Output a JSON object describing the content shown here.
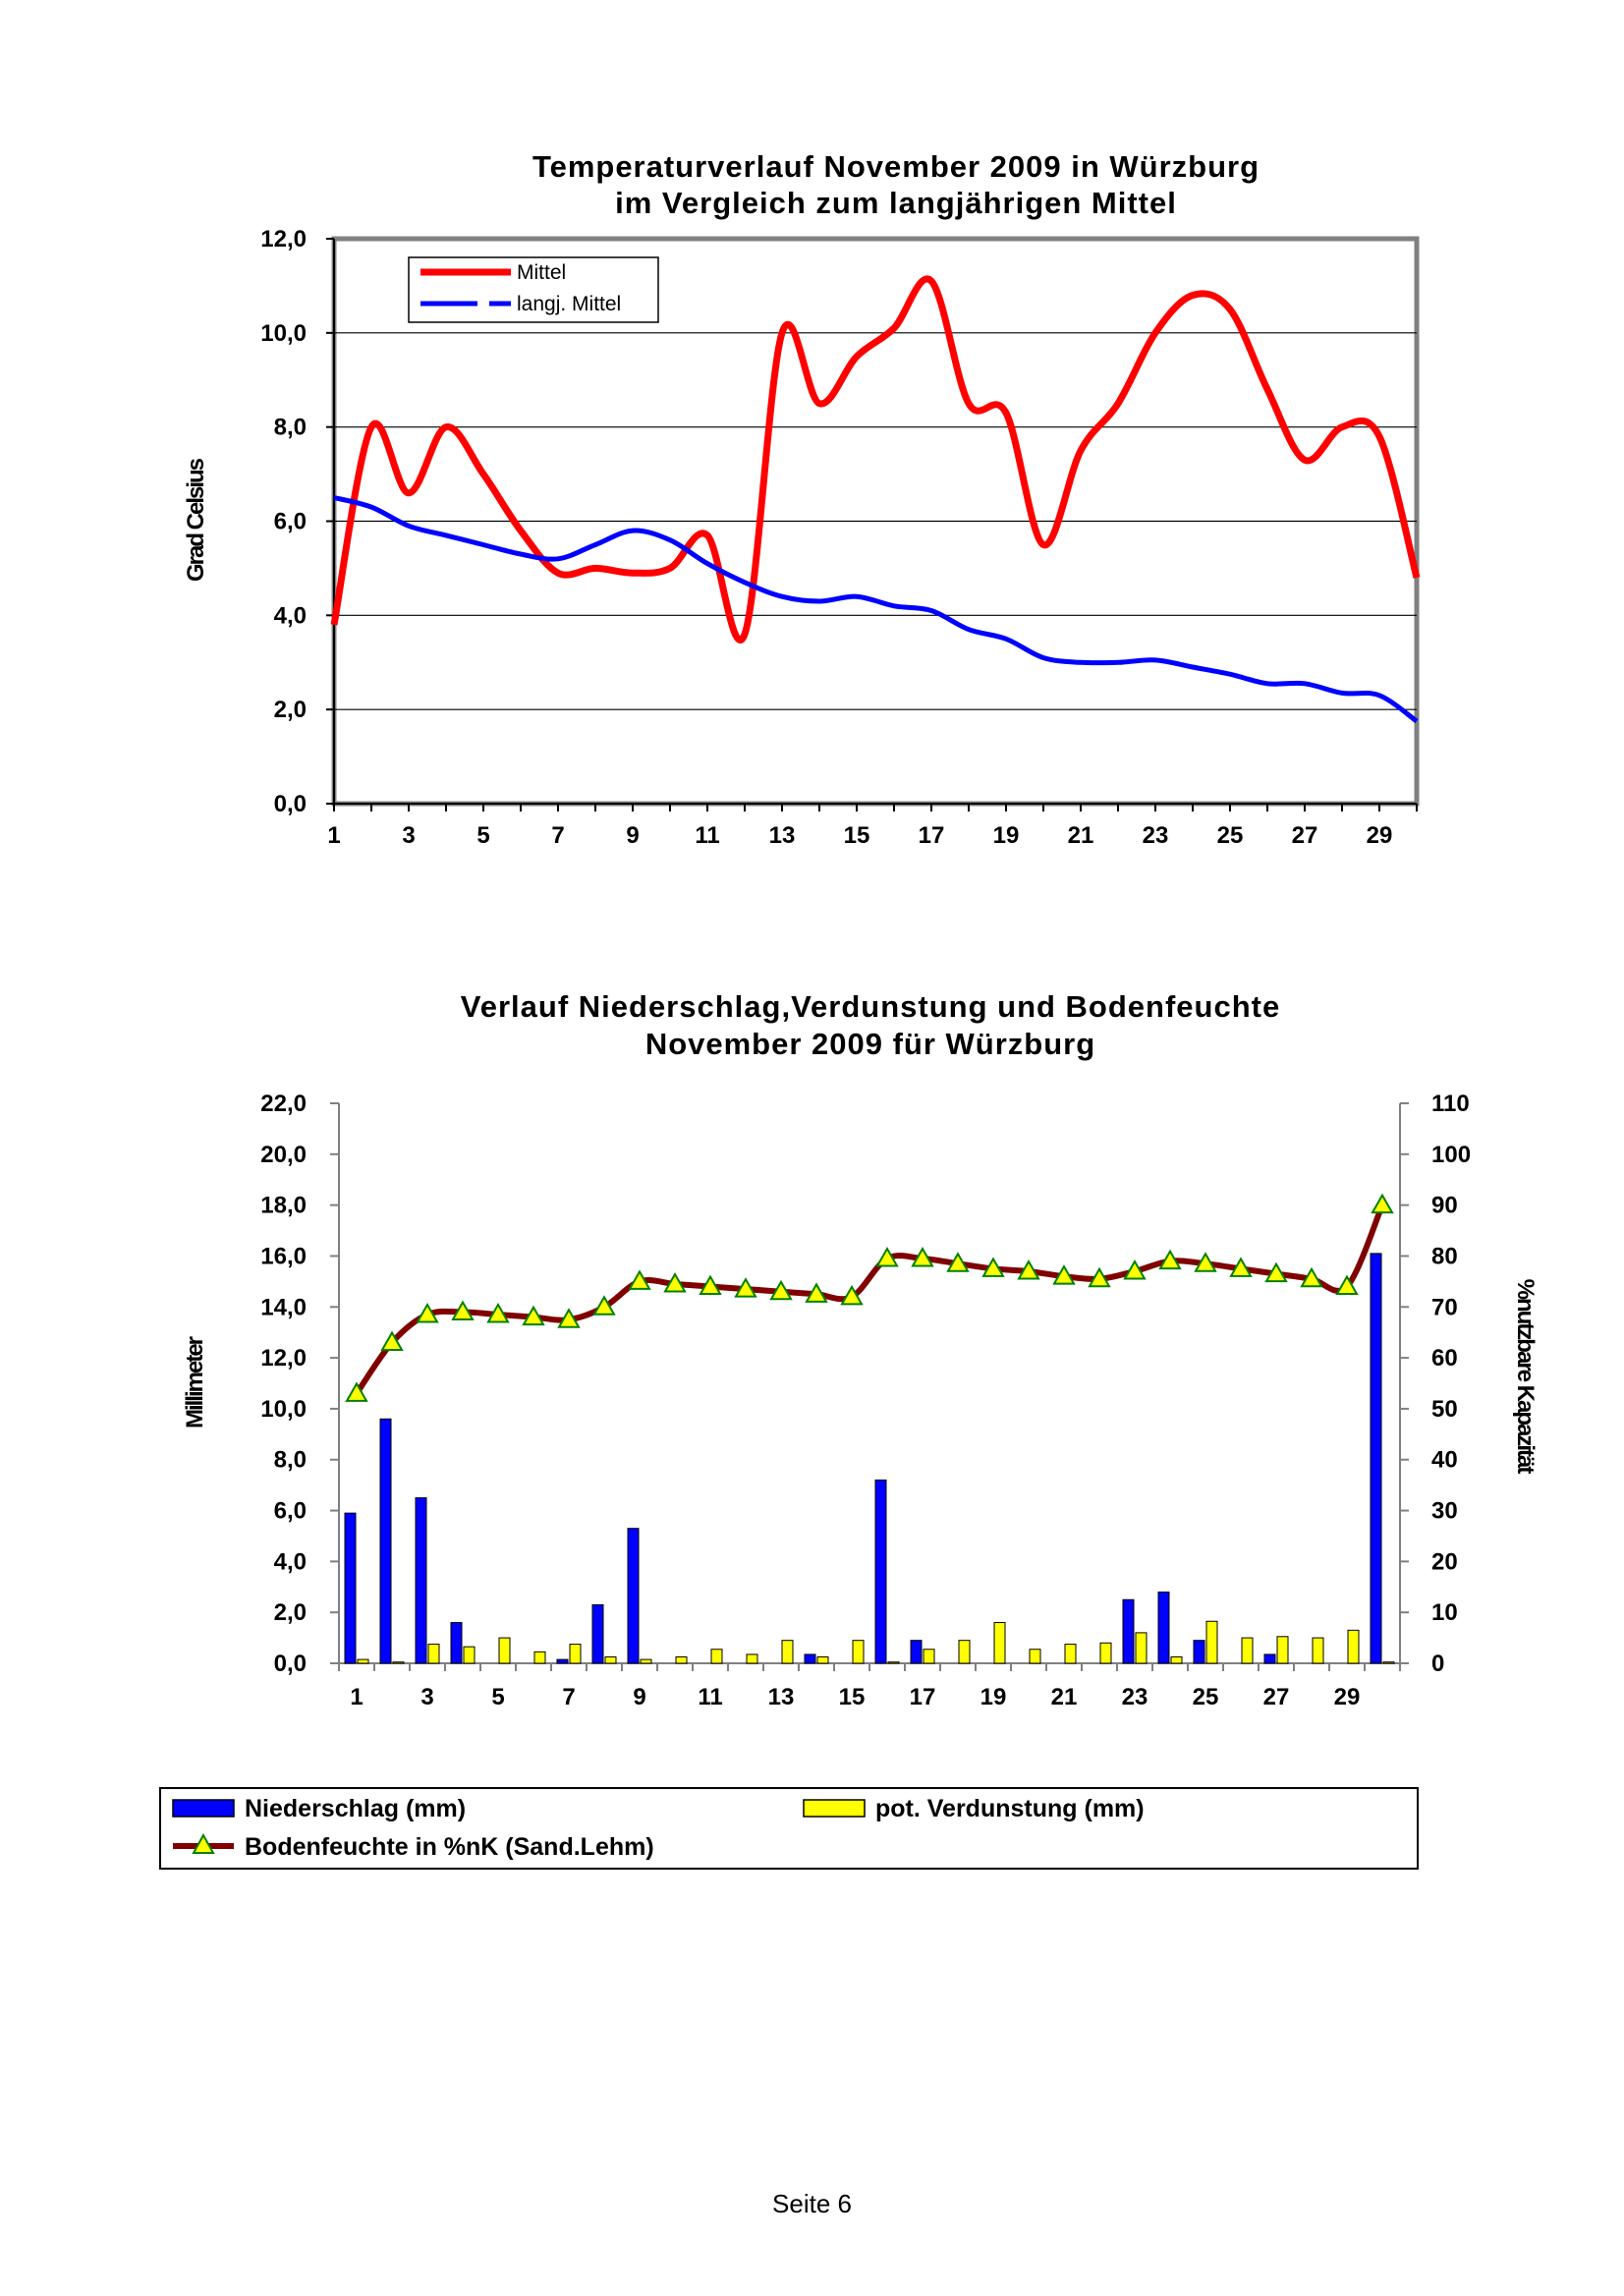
{
  "page": {
    "footer": "Seite 6"
  },
  "chart_data": [
    {
      "type": "line",
      "title": [
        "Temperaturverlauf November 2009 in Würzburg",
        "im Vergleich zum langjährigen Mittel"
      ],
      "ylabel": "Grad Celsius",
      "ylim": [
        0,
        12
      ],
      "yticks": [
        "0,0",
        "2,0",
        "4,0",
        "6,0",
        "8,0",
        "10,0",
        "12,0"
      ],
      "xticks": [
        "1",
        "3",
        "5",
        "7",
        "9",
        "11",
        "13",
        "15",
        "17",
        "19",
        "21",
        "23",
        "25",
        "27",
        "29"
      ],
      "x": [
        1,
        2,
        3,
        4,
        5,
        6,
        7,
        8,
        9,
        10,
        11,
        12,
        13,
        14,
        15,
        16,
        17,
        18,
        19,
        20,
        21,
        22,
        23,
        24,
        25,
        26,
        27,
        28,
        29,
        30
      ],
      "grid": true,
      "legend_position": "top-left",
      "series": [
        {
          "name": "Mittel",
          "color": "#ff0000",
          "values": [
            3.8,
            8.0,
            6.6,
            8.0,
            7.0,
            5.8,
            4.9,
            5.0,
            4.9,
            5.0,
            5.7,
            3.6,
            10.0,
            8.5,
            9.5,
            10.1,
            11.1,
            8.5,
            8.3,
            5.5,
            7.5,
            8.5,
            10.0,
            10.8,
            10.5,
            8.8,
            7.3,
            8.0,
            7.8,
            4.8
          ]
        },
        {
          "name": "langj. Mittel",
          "color": "#0000ff",
          "values": [
            6.5,
            6.3,
            5.9,
            5.7,
            5.5,
            5.3,
            5.2,
            5.5,
            5.8,
            5.6,
            5.1,
            4.7,
            4.4,
            4.3,
            4.4,
            4.2,
            4.1,
            3.7,
            3.5,
            3.1,
            3.0,
            3.0,
            3.05,
            2.9,
            2.75,
            2.55,
            2.55,
            2.35,
            2.3,
            1.75
          ]
        }
      ]
    },
    {
      "type": "bar",
      "title": [
        "Verlauf Niederschlag,Verdunstung und Bodenfeuchte",
        "November 2009 für Würzburg"
      ],
      "ylabel": "Millimeter",
      "y2label": "%nutzbare Kapazität",
      "ylim": [
        0,
        22
      ],
      "y2lim": [
        0,
        110
      ],
      "yticks": [
        "0,0",
        "2,0",
        "4,0",
        "6,0",
        "8,0",
        "10,0",
        "12,0",
        "14,0",
        "16,0",
        "18,0",
        "20,0",
        "22,0"
      ],
      "y2ticks": [
        "0",
        "10",
        "20",
        "30",
        "40",
        "50",
        "60",
        "70",
        "80",
        "90",
        "100",
        "110"
      ],
      "xticks": [
        "1",
        "3",
        "5",
        "7",
        "9",
        "11",
        "13",
        "15",
        "17",
        "19",
        "21",
        "23",
        "25",
        "27",
        "29"
      ],
      "x": [
        1,
        2,
        3,
        4,
        5,
        6,
        7,
        8,
        9,
        10,
        11,
        12,
        13,
        14,
        15,
        16,
        17,
        18,
        19,
        20,
        21,
        22,
        23,
        24,
        25,
        26,
        27,
        28,
        29,
        30
      ],
      "legend_position": "bottom",
      "series": [
        {
          "name": "Niederschlag (mm)",
          "color": "#0000ff",
          "axis": "left",
          "kind": "bar",
          "values": [
            5.9,
            9.6,
            6.5,
            1.6,
            0,
            0,
            0.15,
            2.3,
            5.3,
            0,
            0,
            0,
            0,
            0.35,
            0,
            7.2,
            0.9,
            0,
            0,
            0,
            0,
            0,
            2.5,
            2.8,
            0.9,
            0,
            0.35,
            0,
            0,
            16.1
          ]
        },
        {
          "name": "pot. Verdunstung (mm)",
          "color": "#ffff00",
          "axis": "left",
          "kind": "bar",
          "values": [
            0.15,
            0.05,
            0.75,
            0.65,
            1.0,
            0.45,
            0.75,
            0.25,
            0.15,
            0.25,
            0.55,
            0.35,
            0.9,
            0.25,
            0.9,
            0.05,
            0.55,
            0.9,
            1.6,
            0.55,
            0.75,
            0.8,
            1.2,
            0.25,
            1.65,
            1.0,
            1.05,
            1.0,
            1.3,
            0.05
          ]
        },
        {
          "name": "Bodenfeuchte in %nK (Sand.Lehm)",
          "color": "#800000",
          "marker_color": "#ffff00",
          "axis": "right",
          "kind": "line",
          "values": [
            53,
            63,
            68.5,
            69,
            68.5,
            68,
            67.5,
            70,
            75,
            74.5,
            74,
            73.5,
            73,
            72.5,
            72,
            79.5,
            79.5,
            78.5,
            77.5,
            77,
            76,
            75.5,
            77,
            79,
            78.5,
            77.5,
            76.5,
            75.5,
            74,
            90
          ]
        }
      ]
    }
  ]
}
